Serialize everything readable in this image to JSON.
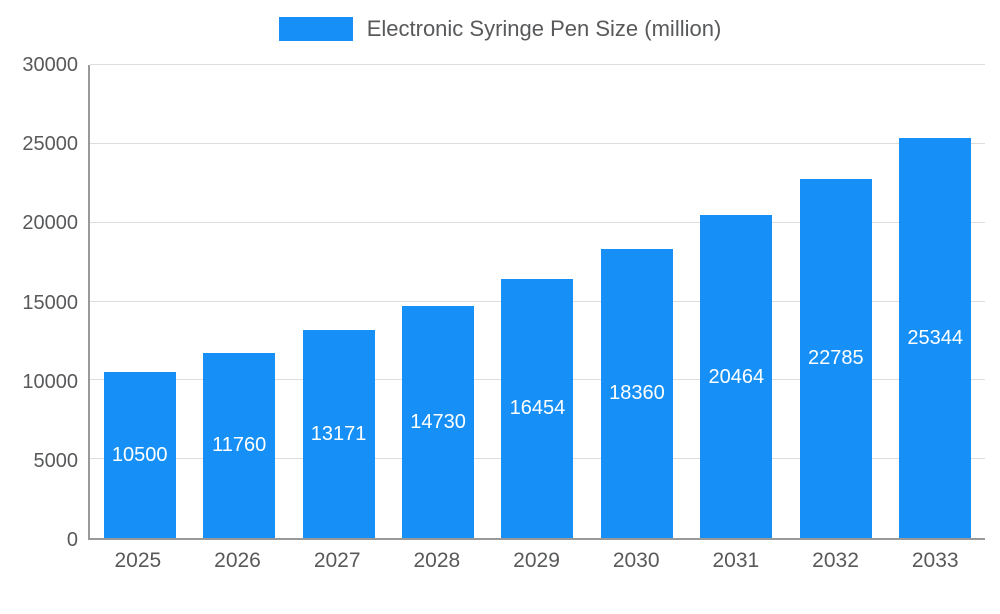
{
  "legend": {
    "label": "Electronic Syringe Pen Size (million)",
    "swatch_color": "#1690f7"
  },
  "chart_data": {
    "type": "bar",
    "title": "Electronic Syringe Pen Size (million)",
    "categories": [
      "2025",
      "2026",
      "2027",
      "2028",
      "2029",
      "2030",
      "2031",
      "2032",
      "2033"
    ],
    "values": [
      10500,
      11760,
      13171,
      14730,
      16454,
      18360,
      20464,
      22785,
      25344
    ],
    "xlabel": "",
    "ylabel": "",
    "ylim": [
      0,
      30000
    ],
    "ytick_step": 5000,
    "yticks": [
      0,
      5000,
      10000,
      15000,
      20000,
      25000,
      30000
    ],
    "grid": true,
    "legend_position": "top",
    "bar_color": "#1690f7",
    "value_label_color": "#ffffff",
    "axis_text_color": "#58595b",
    "axis_line_color": "#999999",
    "grid_color": "#dddddd"
  }
}
